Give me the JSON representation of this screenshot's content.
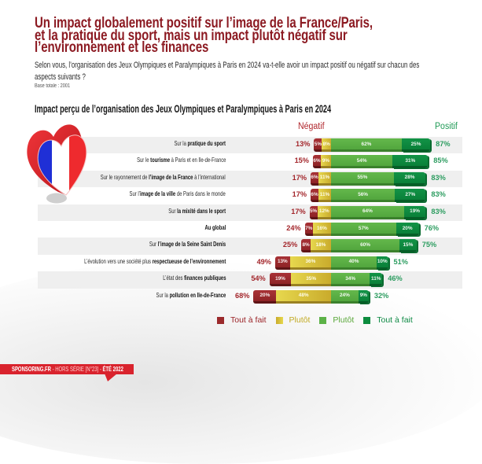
{
  "header": {
    "title_lines": [
      "Un impact globalement positif sur l’image de la France/Paris,",
      "et la pratique du sport, mais un impact plutôt négatif sur",
      "l’environnement et les finances"
    ],
    "subtitle_lines": [
      "Selon vous, l’organisation des Jeux Olympiques et Paralympiques à Paris en 2024 va-t-elle avoir un impact positif ou négatif sur chacun des",
      "aspects suivants ?"
    ],
    "base": "Base totale : 2001"
  },
  "icon": "heart-france-flag-icon",
  "chart_data": {
    "type": "bar",
    "orientation": "horizontal-diverging-stacked",
    "title": "Impact perçu de l’organisation des Jeux Olympiques et Paralympiques à Paris en 2024",
    "negative_header": "Négatif",
    "positive_header": "Positif",
    "categories": [
      "Sur la pratique du sport",
      "Sur le tourisme à Paris et en Ile-de-France",
      "Sur le rayonnement de l’image de la France à l’international",
      "Sur l’image de la ville de Paris dans le monde",
      "Sur la mixité dans le sport",
      "Au global",
      "Sur l’image de la Seine Saint Denis",
      "L’évolution vers une société plus respectueuse de l’environnement",
      "L’état des finances publiques",
      "Sur la pollution en Ile-de-France"
    ],
    "category_labels": [
      {
        "pre": "Sur la ",
        "bold": "pratique du sport",
        "post": ""
      },
      {
        "pre": "Sur le ",
        "bold": "tourisme",
        "post": " à Paris et en Ile-de-France"
      },
      {
        "pre": "Sur le rayonnement de ",
        "bold": "l’image de la France",
        "post": " à l’international"
      },
      {
        "pre": "Sur l’",
        "bold": "image de la ville",
        "post": " de Paris dans le monde"
      },
      {
        "pre": "Sur ",
        "bold": "la mixité dans le sport",
        "post": ""
      },
      {
        "pre": "",
        "bold": "Au global",
        "post": ""
      },
      {
        "pre": "Sur ",
        "bold": "l’image de la Seine Saint Denis",
        "post": ""
      },
      {
        "pre": "L’évolution vers une société plus ",
        "bold": "respectueuse de l’environnement",
        "post": ""
      },
      {
        "pre": "L’état des ",
        "bold": "finances publiques",
        "post": ""
      },
      {
        "pre": "Sur la ",
        "bold": "pollution en Ile-de-France",
        "post": ""
      }
    ],
    "series": [
      {
        "name": "Tout à fait (négatif)",
        "side": "negative",
        "color": "#9b2a2c",
        "values": [
          5,
          6,
          6,
          6,
          5,
          7,
          8,
          13,
          19,
          20
        ]
      },
      {
        "name": "Plutôt (négatif)",
        "side": "negative",
        "color": "#d4bf3a",
        "values": [
          8,
          9,
          11,
          11,
          12,
          16,
          18,
          36,
          35,
          48
        ]
      },
      {
        "name": "Plutôt (positif)",
        "side": "positive",
        "color": "#5cb247",
        "values": [
          62,
          54,
          55,
          56,
          64,
          57,
          60,
          40,
          34,
          24
        ]
      },
      {
        "name": "Tout à fait (positif)",
        "side": "positive",
        "color": "#0d8c3f",
        "values": [
          25,
          31,
          28,
          27,
          19,
          20,
          15,
          10,
          11,
          9
        ]
      }
    ],
    "negative_totals": [
      13,
      15,
      17,
      17,
      17,
      24,
      25,
      49,
      54,
      68
    ],
    "positive_totals": [
      87,
      85,
      83,
      83,
      83,
      76,
      75,
      51,
      46,
      32
    ],
    "unit": "%",
    "legend": [
      {
        "label": "Tout à fait"
      },
      {
        "label": "Plutôt"
      },
      {
        "label": "Plutôt"
      },
      {
        "label": "Tout à fait"
      }
    ],
    "legend_position": "bottom"
  },
  "footer": {
    "brand": "SPONSORING.FR",
    "middle": " - HORS SÉRIE [N°23] - ",
    "date": "ÉTÉ 2022"
  }
}
